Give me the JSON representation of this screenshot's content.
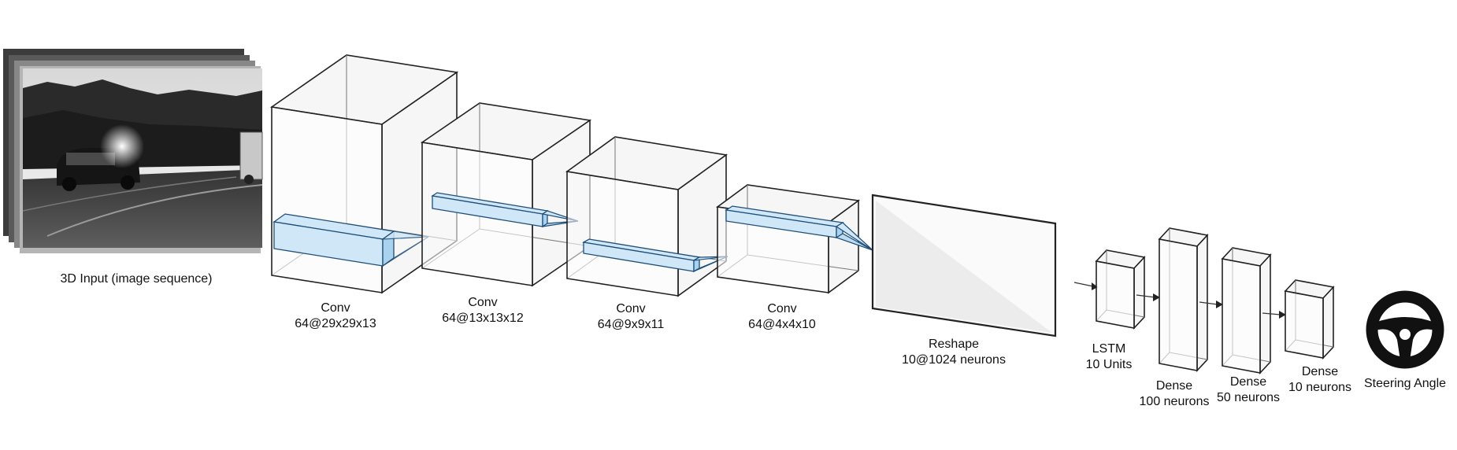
{
  "diagram": {
    "input_label": "3D Input (image sequence)",
    "conv1": {
      "title": "Conv",
      "shape": "64@29x29x13"
    },
    "conv2": {
      "title": "Conv",
      "shape": "64@13x13x12"
    },
    "conv3": {
      "title": "Conv",
      "shape": "64@9x9x11"
    },
    "conv4": {
      "title": "Conv",
      "shape": "64@4x4x10"
    },
    "reshape": {
      "title": "Reshape",
      "shape": "10@1024 neurons"
    },
    "lstm": {
      "title": "LSTM",
      "shape": "10 Units"
    },
    "dense1": {
      "title": "Dense",
      "shape": "100 neurons"
    },
    "dense2": {
      "title": "Dense",
      "shape": "50 neurons"
    },
    "dense3": {
      "title": "Dense",
      "shape": "10 neurons"
    },
    "output_label": "Steering Angle",
    "icons": [
      "image-sequence-icon",
      "steering-wheel-icon"
    ],
    "colors": {
      "kernel_fill": "#cfe7f7",
      "kernel_stroke": "#1f4e79",
      "edge": "#222222"
    }
  }
}
